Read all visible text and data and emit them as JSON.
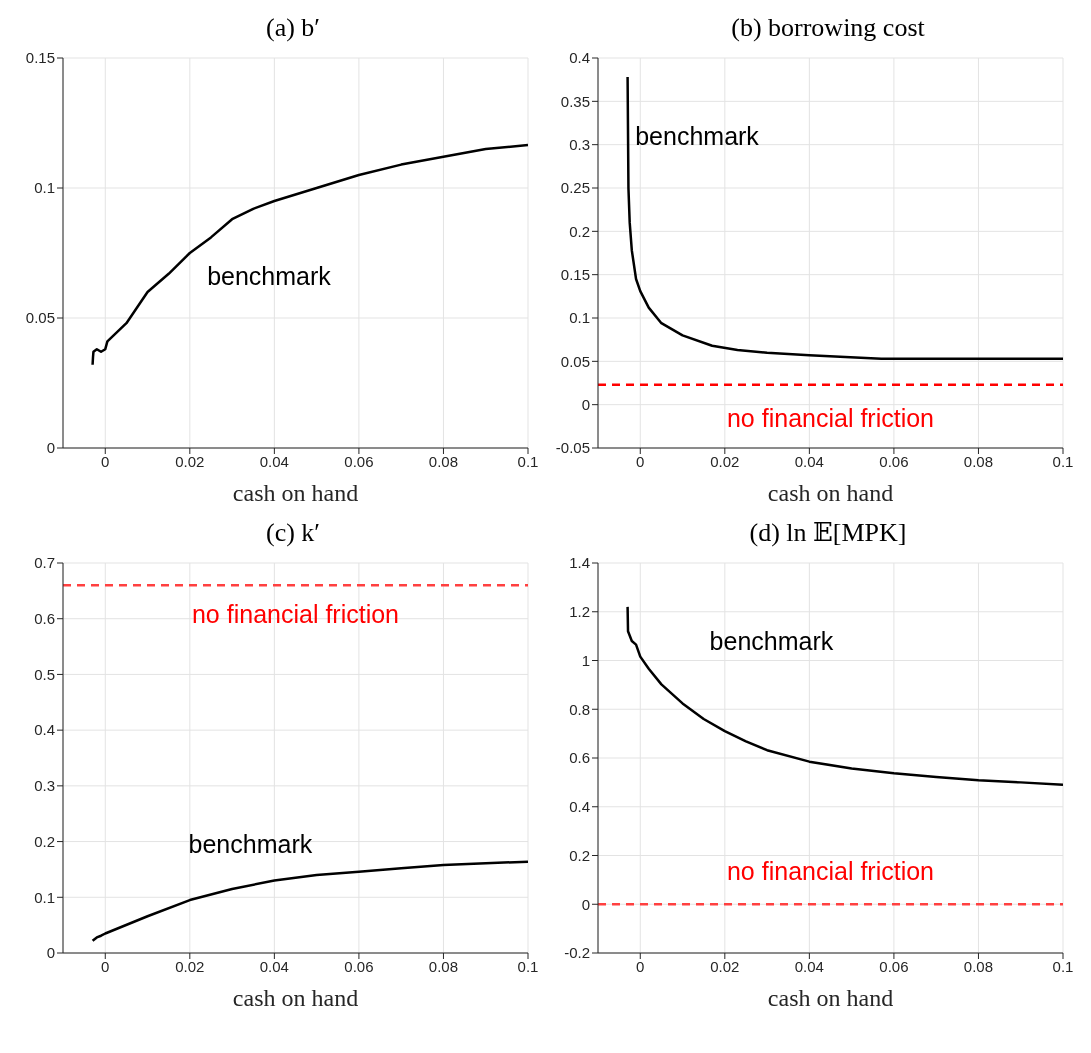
{
  "chart_data": [
    {
      "type": "line",
      "title": "(a) b′",
      "xlabel": "cash on hand",
      "xlim": [
        -0.01,
        0.1
      ],
      "xticks": [
        0,
        0.02,
        0.04,
        0.06,
        0.08,
        0.1
      ],
      "ylim": [
        0,
        0.15
      ],
      "yticks": [
        0,
        0.05,
        0.1,
        0.15
      ],
      "grid": true,
      "marker": "none",
      "line_style": "solid",
      "x": [
        -0.003,
        -0.0029,
        -0.0028,
        -0.002,
        -0.001,
        0,
        0.0005,
        0.005,
        0.01,
        0.015,
        0.02,
        0.025,
        0.03,
        0.035,
        0.04,
        0.05,
        0.06,
        0.07,
        0.08,
        0.09,
        0.1
      ],
      "series": [
        {
          "name": "benchmark",
          "color": "#000000",
          "values": [
            0.032,
            0.035,
            0.037,
            0.038,
            0.037,
            0.038,
            0.041,
            0.048,
            0.06,
            0.067,
            0.075,
            0.081,
            0.088,
            0.092,
            0.095,
            0.1,
            0.105,
            0.109,
            0.112,
            0.115,
            0.1165
          ]
        }
      ]
    },
    {
      "type": "line",
      "title": "(b) borrowing cost",
      "xlabel": "cash on hand",
      "xlim": [
        -0.01,
        0.1
      ],
      "xticks": [
        0,
        0.02,
        0.04,
        0.06,
        0.08,
        0.1
      ],
      "ylim": [
        -0.05,
        0.4
      ],
      "yticks": [
        -0.05,
        0,
        0.05,
        0.1,
        0.15,
        0.2,
        0.25,
        0.3,
        0.35,
        0.4
      ],
      "grid": true,
      "marker": "none",
      "line_style": "solid",
      "x": [
        -0.003,
        -0.0028,
        -0.0025,
        -0.002,
        -0.001,
        0,
        0.002,
        0.005,
        0.01,
        0.017,
        0.023,
        0.03,
        0.04,
        0.057,
        0.08,
        0.1
      ],
      "series": [
        {
          "name": "benchmark",
          "color": "#000000",
          "values": [
            0.378,
            0.25,
            0.21,
            0.178,
            0.145,
            0.131,
            0.112,
            0.094,
            0.08,
            0.068,
            0.063,
            0.06,
            0.057,
            0.053,
            0.053,
            0.053
          ]
        }
      ],
      "ref_lines": [
        {
          "axis": "y",
          "value": 0.023,
          "label": "no financial friction",
          "color": "#ff0000",
          "line_style": "dashed"
        }
      ]
    },
    {
      "type": "line",
      "title": "(c) k′",
      "xlabel": "cash on hand",
      "xlim": [
        -0.01,
        0.1
      ],
      "xticks": [
        0,
        0.02,
        0.04,
        0.06,
        0.08,
        0.1
      ],
      "ylim": [
        0,
        0.7
      ],
      "yticks": [
        0,
        0.1,
        0.2,
        0.3,
        0.4,
        0.5,
        0.6,
        0.7
      ],
      "grid": true,
      "marker": "none",
      "line_style": "solid",
      "x": [
        -0.003,
        -0.002,
        -0.001,
        0,
        0.01,
        0.02,
        0.03,
        0.04,
        0.05,
        0.06,
        0.07,
        0.08,
        0.09,
        0.1
      ],
      "series": [
        {
          "name": "benchmark",
          "color": "#000000",
          "values": [
            0.022,
            0.028,
            0.031,
            0.035,
            0.066,
            0.095,
            0.115,
            0.13,
            0.14,
            0.146,
            0.152,
            0.158,
            0.161,
            0.164
          ]
        }
      ],
      "ref_lines": [
        {
          "axis": "y",
          "value": 0.66,
          "label": "no financial friction",
          "color": "#ff4040",
          "line_style": "dashed"
        }
      ]
    },
    {
      "type": "line",
      "title": "(d) ln 𝔼[MPK]",
      "xlabel": "cash on hand",
      "xlim": [
        -0.01,
        0.1
      ],
      "xticks": [
        0,
        0.02,
        0.04,
        0.06,
        0.08,
        0.1
      ],
      "ylim": [
        -0.2,
        1.4
      ],
      "yticks": [
        -0.2,
        0,
        0.2,
        0.4,
        0.6,
        0.8,
        1,
        1.2,
        1.4
      ],
      "grid": true,
      "marker": "none",
      "line_style": "solid",
      "x": [
        -0.003,
        -0.0029,
        -0.002,
        -0.001,
        0,
        0.002,
        0.005,
        0.01,
        0.015,
        0.02,
        0.025,
        0.03,
        0.04,
        0.05,
        0.06,
        0.07,
        0.08,
        0.09,
        0.1
      ],
      "series": [
        {
          "name": "benchmark",
          "color": "#000000",
          "values": [
            1.22,
            1.12,
            1.08,
            1.065,
            1.016,
            0.966,
            0.902,
            0.824,
            0.76,
            0.71,
            0.668,
            0.632,
            0.585,
            0.557,
            0.537,
            0.522,
            0.509,
            0.5,
            0.49
          ]
        }
      ],
      "ref_lines": [
        {
          "axis": "y",
          "value": 0,
          "label": "no financial friction",
          "color": "#ff4040",
          "line_style": "dashed"
        }
      ]
    }
  ]
}
